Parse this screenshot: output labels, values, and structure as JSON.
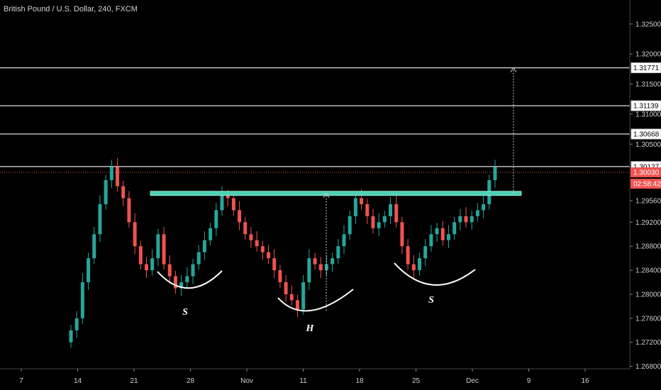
{
  "chart_data": {
    "type": "candlestick",
    "title": "British Pound / U.S. Dollar, 240, FXCM",
    "ylim": [
      1.2676,
      1.329
    ],
    "y_ticks": [
      "1.32500",
      "1.32000",
      "1.31500",
      "1.31000",
      "1.30500",
      "1.29560",
      "1.29200",
      "1.28800",
      "1.28400",
      "1.28000",
      "1.27600",
      "1.27200",
      "1.26800"
    ],
    "x_ticks": [
      "7",
      "14",
      "21",
      "28",
      "Nov",
      "11",
      "18",
      "25",
      "Dec",
      "9",
      "16"
    ],
    "horizontal_levels": [
      "1.31771",
      "1.31139",
      "1.30668",
      "1.30127"
    ],
    "neckline": 1.2968,
    "current_price": "1.30030",
    "countdown": "02:58:42",
    "target_projection": {
      "from": 1.2968,
      "to": 1.31771
    },
    "patterns": [
      {
        "label": "S"
      },
      {
        "label": "H"
      },
      {
        "label": "S"
      }
    ],
    "series_close": [
      1.274,
      1.276,
      1.282,
      1.286,
      1.29,
      1.295,
      1.299,
      1.3012,
      1.298,
      1.296,
      1.292,
      1.288,
      1.285,
      1.284,
      1.286,
      1.29,
      1.285,
      1.283,
      1.281,
      1.282,
      1.283,
      1.285,
      1.287,
      1.289,
      1.291,
      1.294,
      1.2965,
      1.296,
      1.294,
      1.292,
      1.29,
      1.289,
      1.288,
      1.287,
      1.286,
      1.284,
      1.282,
      1.28,
      1.279,
      1.2775,
      1.282,
      1.286,
      1.285,
      1.284,
      1.285,
      1.286,
      1.288,
      1.29,
      1.293,
      1.296,
      1.295,
      1.293,
      1.291,
      1.292,
      1.293,
      1.295,
      1.292,
      1.288,
      1.285,
      1.284,
      1.286,
      1.288,
      1.29,
      1.291,
      1.289,
      1.29,
      1.292,
      1.293,
      1.292,
      1.293,
      1.294,
      1.295,
      1.299,
      1.3012
    ]
  }
}
